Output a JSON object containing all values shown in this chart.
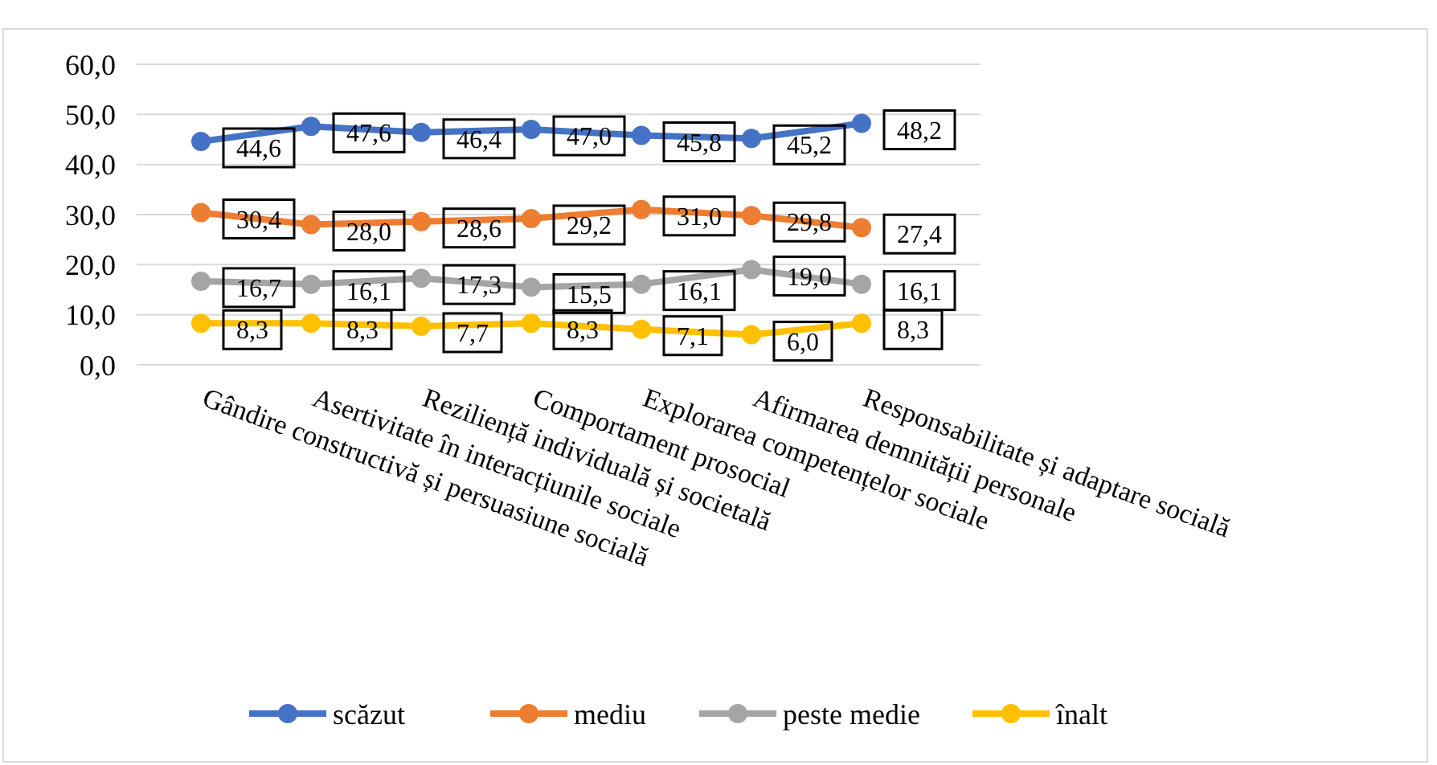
{
  "chart_data": {
    "type": "line",
    "categories": [
      "Gândire constructivă și persuasiune socială",
      "Asertivitate în interacțiunile sociale",
      "Reziliență individuală și societală",
      "Comportament prosocial",
      "Explorarea competențelor sociale",
      "Afirmarea demnității personale",
      "Responsabilitate și adaptare socială"
    ],
    "series": [
      {
        "name": "scăzut",
        "color": "#4472c4",
        "values": [
          44.6,
          47.6,
          46.4,
          47.0,
          45.8,
          45.2,
          48.2
        ],
        "value_labels": [
          "44,6",
          "47,6",
          "46,4",
          "47,0",
          "45,8",
          "45,2",
          "48,2"
        ]
      },
      {
        "name": "mediu",
        "color": "#ed7d31",
        "values": [
          30.4,
          28.0,
          28.6,
          29.2,
          31.0,
          29.8,
          27.4
        ],
        "value_labels": [
          "30,4",
          "28,0",
          "28,6",
          "29,2",
          "31,0",
          "29,8",
          "27,4"
        ]
      },
      {
        "name": "peste medie",
        "color": "#a5a5a5",
        "values": [
          16.7,
          16.1,
          17.3,
          15.5,
          16.1,
          19.0,
          16.1
        ],
        "value_labels": [
          "16,7",
          "16,1",
          "17,3",
          "15,5",
          "16,1",
          "19,0",
          "16,1"
        ]
      },
      {
        "name": "înalt",
        "color": "#ffc000",
        "values": [
          8.3,
          8.3,
          7.7,
          8.3,
          7.1,
          6.0,
          8.3
        ],
        "value_labels": [
          "8,3",
          "8,3",
          "7,7",
          "8,3",
          "7,1",
          "6,0",
          "8,3"
        ]
      }
    ],
    "ylim": [
      0,
      60
    ],
    "yticks": [
      {
        "value": 0,
        "label": "0,0"
      },
      {
        "value": 10,
        "label": "10,0"
      },
      {
        "value": 20,
        "label": "20,0"
      },
      {
        "value": 30,
        "label": "30,0"
      },
      {
        "value": 40,
        "label": "40,0"
      },
      {
        "value": 50,
        "label": "50,0"
      },
      {
        "value": 60,
        "label": "60,0"
      }
    ],
    "grid": "y",
    "legend": "bottom",
    "marker": "circle",
    "line_style": "solid"
  }
}
